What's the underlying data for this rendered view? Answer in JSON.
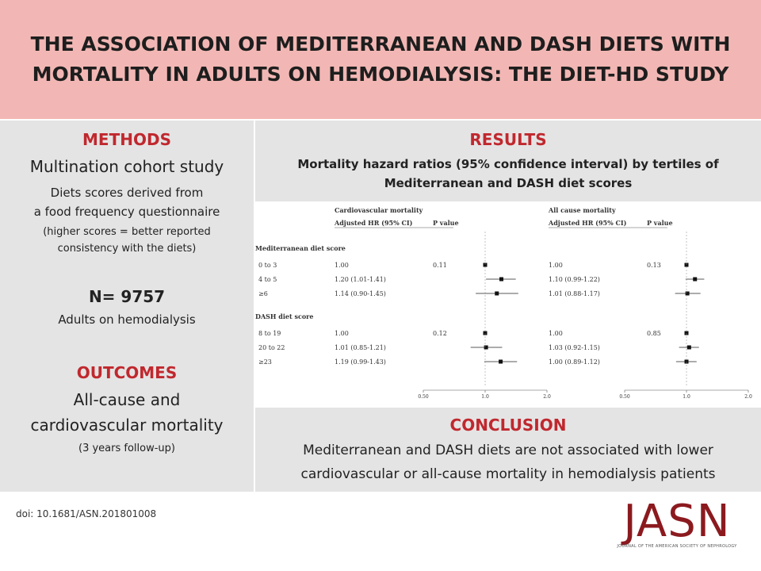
{
  "header": {
    "line1": "THE ASSOCIATION OF MEDITERRANEAN AND DASH DIETS WITH",
    "line2": "MORTALITY IN ADULTS ON HEMODIALYSIS: THE DIET-HD STUDY"
  },
  "methods": {
    "title": "METHODS",
    "study": "Multination cohort study",
    "desc1": "Diets scores derived from",
    "desc2": "a food frequency questionnaire",
    "note1": "(higher scores = better reported",
    "note2": "consistency with the diets)",
    "n": "N= 9757",
    "n_label": "Adults on hemodialysis"
  },
  "outcomes": {
    "title": "OUTCOMES",
    "line1": "All-cause and",
    "line2": "cardiovascular mortality",
    "line3": "(3 years follow-up)"
  },
  "results": {
    "title": "RESULTS",
    "sub1": "Mortality hazard ratios (95% confidence interval) by tertiles of",
    "sub2": "Mediterranean and DASH diet scores"
  },
  "conclusion": {
    "title": "CONCLUSION",
    "line1": "Mediterranean and DASH diets are not associated with lower",
    "line2": "cardiovascular or all-cause mortality in hemodialysis patients"
  },
  "footer": {
    "doi": "doi: 10.1681/ASN.201801008",
    "logo": "JASN",
    "logo_sub": "JOURNAL OF THE AMERICAN SOCIETY OF NEPHROLOGY"
  },
  "chart_data": {
    "type": "forest",
    "panels": [
      {
        "title": "Cardiovascular mortality",
        "hr_header": "Adjusted HR (95% CI)",
        "p_header": "P value",
        "axis_ticks": [
          "0.50",
          "1.0",
          "2.0"
        ]
      },
      {
        "title": "All cause mortality",
        "hr_header": "Adjusted HR (95% CI)",
        "p_header": "P value",
        "axis_ticks": [
          "0.50",
          "1.0",
          "2.0"
        ]
      }
    ],
    "groups": [
      {
        "label": "Mediterranean diet score",
        "p_values": [
          "0.11",
          "0.13"
        ],
        "rows": [
          {
            "label": "0 to 3",
            "cv_text": "1.00",
            "cv": [
              1.0,
              1.0,
              1.0
            ],
            "all_text": "1.00",
            "all": [
              1.0,
              1.0,
              1.0
            ]
          },
          {
            "label": "4 to 5",
            "cv_text": "1.20 (1.01-1.41)",
            "cv": [
              1.2,
              1.01,
              1.41
            ],
            "all_text": "1.10 (0.99-1.22)",
            "all": [
              1.1,
              0.99,
              1.22
            ]
          },
          {
            "label": "≥6",
            "cv_text": "1.14 (0.90-1.45)",
            "cv": [
              1.14,
              0.9,
              1.45
            ],
            "all_text": "1.01 (0.88-1.17)",
            "all": [
              1.01,
              0.88,
              1.17
            ]
          }
        ]
      },
      {
        "label": "DASH diet score",
        "p_values": [
          "0.12",
          "0.85"
        ],
        "rows": [
          {
            "label": "8 to 19",
            "cv_text": "1.00",
            "cv": [
              1.0,
              1.0,
              1.0
            ],
            "all_text": "1.00",
            "all": [
              1.0,
              1.0,
              1.0
            ]
          },
          {
            "label": "20 to 22",
            "cv_text": "1.01 (0.85-1.21)",
            "cv": [
              1.01,
              0.85,
              1.21
            ],
            "all_text": "1.03 (0.92-1.15)",
            "all": [
              1.03,
              0.92,
              1.15
            ]
          },
          {
            "label": "≥23",
            "cv_text": "1.19 (0.99-1.43)",
            "cv": [
              1.19,
              0.99,
              1.43
            ],
            "all_text": "1.00 (0.89-1.12)",
            "all": [
              1.0,
              0.89,
              1.12
            ]
          }
        ]
      }
    ]
  }
}
